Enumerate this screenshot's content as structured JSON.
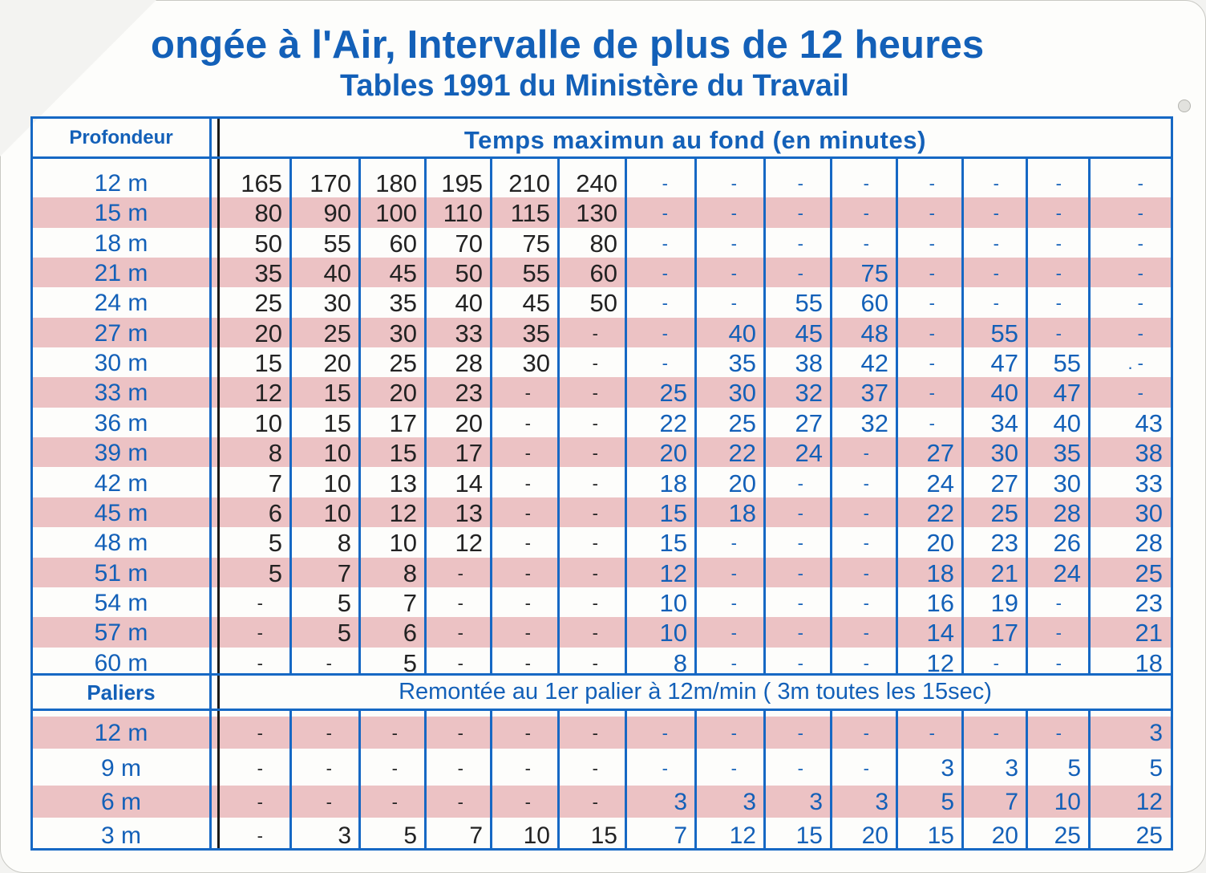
{
  "card": {
    "title": "ongée à l'Air, Intervalle de plus de 12 heures",
    "subtitle": "Tables 1991 du Ministère du Travail"
  },
  "table": {
    "depth_header": "Profondeur",
    "time_header": "Temps maximun au fond (en minutes)",
    "stops_header": "Paliers",
    "ascent_note": "Remontée au 1er palier à 12m/min ( 3m toutes les 15sec)",
    "colors": {
      "blue": "#1360b8",
      "stripe": "#ecc2c4",
      "dark": "#222222"
    },
    "time_rows": [
      {
        "depth": "12 m",
        "cells": [
          "165",
          "170",
          "180",
          "195",
          "210",
          "240",
          "-",
          "-",
          "-",
          "-",
          "-",
          "-",
          "-",
          "-"
        ]
      },
      {
        "depth": "15 m",
        "cells": [
          "80",
          "90",
          "100",
          "110",
          "115",
          "130",
          "-",
          "-",
          "-",
          "-",
          "-",
          "-",
          "-",
          "-"
        ]
      },
      {
        "depth": "18 m",
        "cells": [
          "50",
          "55",
          "60",
          "70",
          "75",
          "80",
          "-",
          "-",
          "-",
          "-",
          "-",
          "-",
          "-",
          "-"
        ]
      },
      {
        "depth": "21 m",
        "cells": [
          "35",
          "40",
          "45",
          "50",
          "55",
          "60",
          "-",
          "-",
          "-",
          "75",
          "-",
          "-",
          "-",
          "-"
        ]
      },
      {
        "depth": "24 m",
        "cells": [
          "25",
          "30",
          "35",
          "40",
          "45",
          "50",
          "-",
          "-",
          "55",
          "60",
          "-",
          "-",
          "-",
          "-"
        ]
      },
      {
        "depth": "27 m",
        "cells": [
          "20",
          "25",
          "30",
          "33",
          "35",
          "-",
          "-",
          "40",
          "45",
          "48",
          "-",
          "55",
          "-",
          "-"
        ]
      },
      {
        "depth": "30 m",
        "cells": [
          "15",
          "20",
          "25",
          "28",
          "30",
          "-",
          "-",
          "35",
          "38",
          "42",
          "-",
          "47",
          "55",
          ". -"
        ]
      },
      {
        "depth": "33 m",
        "cells": [
          "12",
          "15",
          "20",
          "23",
          "-",
          "-",
          "25",
          "30",
          "32",
          "37",
          "-",
          "40",
          "47",
          "-"
        ]
      },
      {
        "depth": "36 m",
        "cells": [
          "10",
          "15",
          "17",
          "20",
          "-",
          "-",
          "22",
          "25",
          "27",
          "32",
          "-",
          "34",
          "40",
          "43"
        ]
      },
      {
        "depth": "39 m",
        "cells": [
          "8",
          "10",
          "15",
          "17",
          "-",
          "-",
          "20",
          "22",
          "24",
          "-",
          "27",
          "30",
          "35",
          "38"
        ]
      },
      {
        "depth": "42 m",
        "cells": [
          "7",
          "10",
          "13",
          "14",
          "-",
          "-",
          "18",
          "20",
          "-",
          "-",
          "24",
          "27",
          "30",
          "33"
        ]
      },
      {
        "depth": "45 m",
        "cells": [
          "6",
          "10",
          "12",
          "13",
          "-",
          "-",
          "15",
          "18",
          "-",
          "-",
          "22",
          "25",
          "28",
          "30"
        ]
      },
      {
        "depth": "48 m",
        "cells": [
          "5",
          "8",
          "10",
          "12",
          "-",
          "-",
          "15",
          "-",
          "-",
          "-",
          "20",
          "23",
          "26",
          "28"
        ]
      },
      {
        "depth": "51 m",
        "cells": [
          "5",
          "7",
          "8",
          "-",
          "-",
          "-",
          "12",
          "-",
          "-",
          "-",
          "18",
          "21",
          "24",
          "25"
        ]
      },
      {
        "depth": "54 m",
        "cells": [
          "-",
          "5",
          "7",
          "-",
          "-",
          "-",
          "10",
          "-",
          "-",
          "-",
          "16",
          "19",
          "-",
          "23"
        ]
      },
      {
        "depth": "57 m",
        "cells": [
          "-",
          "5",
          "6",
          "-",
          "-",
          "-",
          "10",
          "-",
          "-",
          "-",
          "14",
          "17",
          "-",
          "21"
        ]
      },
      {
        "depth": "60 m",
        "cells": [
          "-",
          "-",
          "5",
          "-",
          "-",
          "-",
          "8",
          "-",
          "-",
          "-",
          "12",
          "-",
          "-",
          "18"
        ]
      }
    ],
    "stop_rows": [
      {
        "depth": "12 m",
        "cells": [
          "-",
          "-",
          "-",
          "-",
          "-",
          "-",
          "-",
          "-",
          "-",
          "-",
          "-",
          "-",
          "-",
          "3"
        ]
      },
      {
        "depth": "9 m",
        "cells": [
          "-",
          "-",
          "-",
          "-",
          "-",
          "-",
          "-",
          "-",
          "-",
          "-",
          "3",
          "3",
          "5",
          "5"
        ]
      },
      {
        "depth": "6 m",
        "cells": [
          "-",
          "-",
          "-",
          "-",
          "-",
          "-",
          "3",
          "3",
          "3",
          "3",
          "5",
          "7",
          "10",
          "12"
        ]
      },
      {
        "depth": "3 m",
        "cells": [
          "-",
          "3",
          "5",
          "7",
          "10",
          "15",
          "7",
          "12",
          "15",
          "20",
          "15",
          "20",
          "25",
          "25"
        ]
      }
    ]
  }
}
